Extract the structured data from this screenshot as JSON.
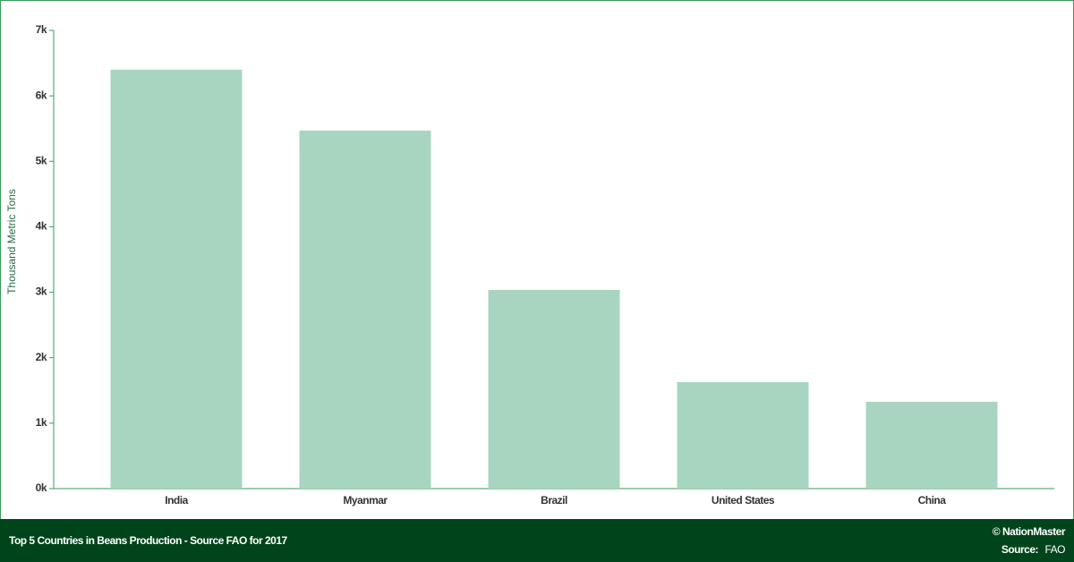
{
  "chart_data": {
    "type": "bar",
    "title": "Top 5 Countries in Beans Production - Source FAO for 2017",
    "y_label": "Thousand Metric Tons",
    "categories": [
      "India",
      "Myanmar",
      "Brazil",
      "United States",
      "China"
    ],
    "values": [
      6400,
      5470,
      3035,
      1627,
      1326
    ],
    "color": "#a8d5c0",
    "ylim": [
      0,
      7000
    ],
    "yticks": [
      {
        "value": 0,
        "label": "0k"
      },
      {
        "value": 1000,
        "label": "1k"
      },
      {
        "value": 2000,
        "label": "2k"
      },
      {
        "value": 3000,
        "label": "3k"
      },
      {
        "value": 4000,
        "label": "4k"
      },
      {
        "value": 5000,
        "label": "5k"
      },
      {
        "value": 6000,
        "label": "6k"
      },
      {
        "value": 7000,
        "label": "7k"
      }
    ],
    "grid": false
  },
  "footer": {
    "credit": "© NationMaster",
    "source_label": "Source:",
    "source": "FAO"
  }
}
